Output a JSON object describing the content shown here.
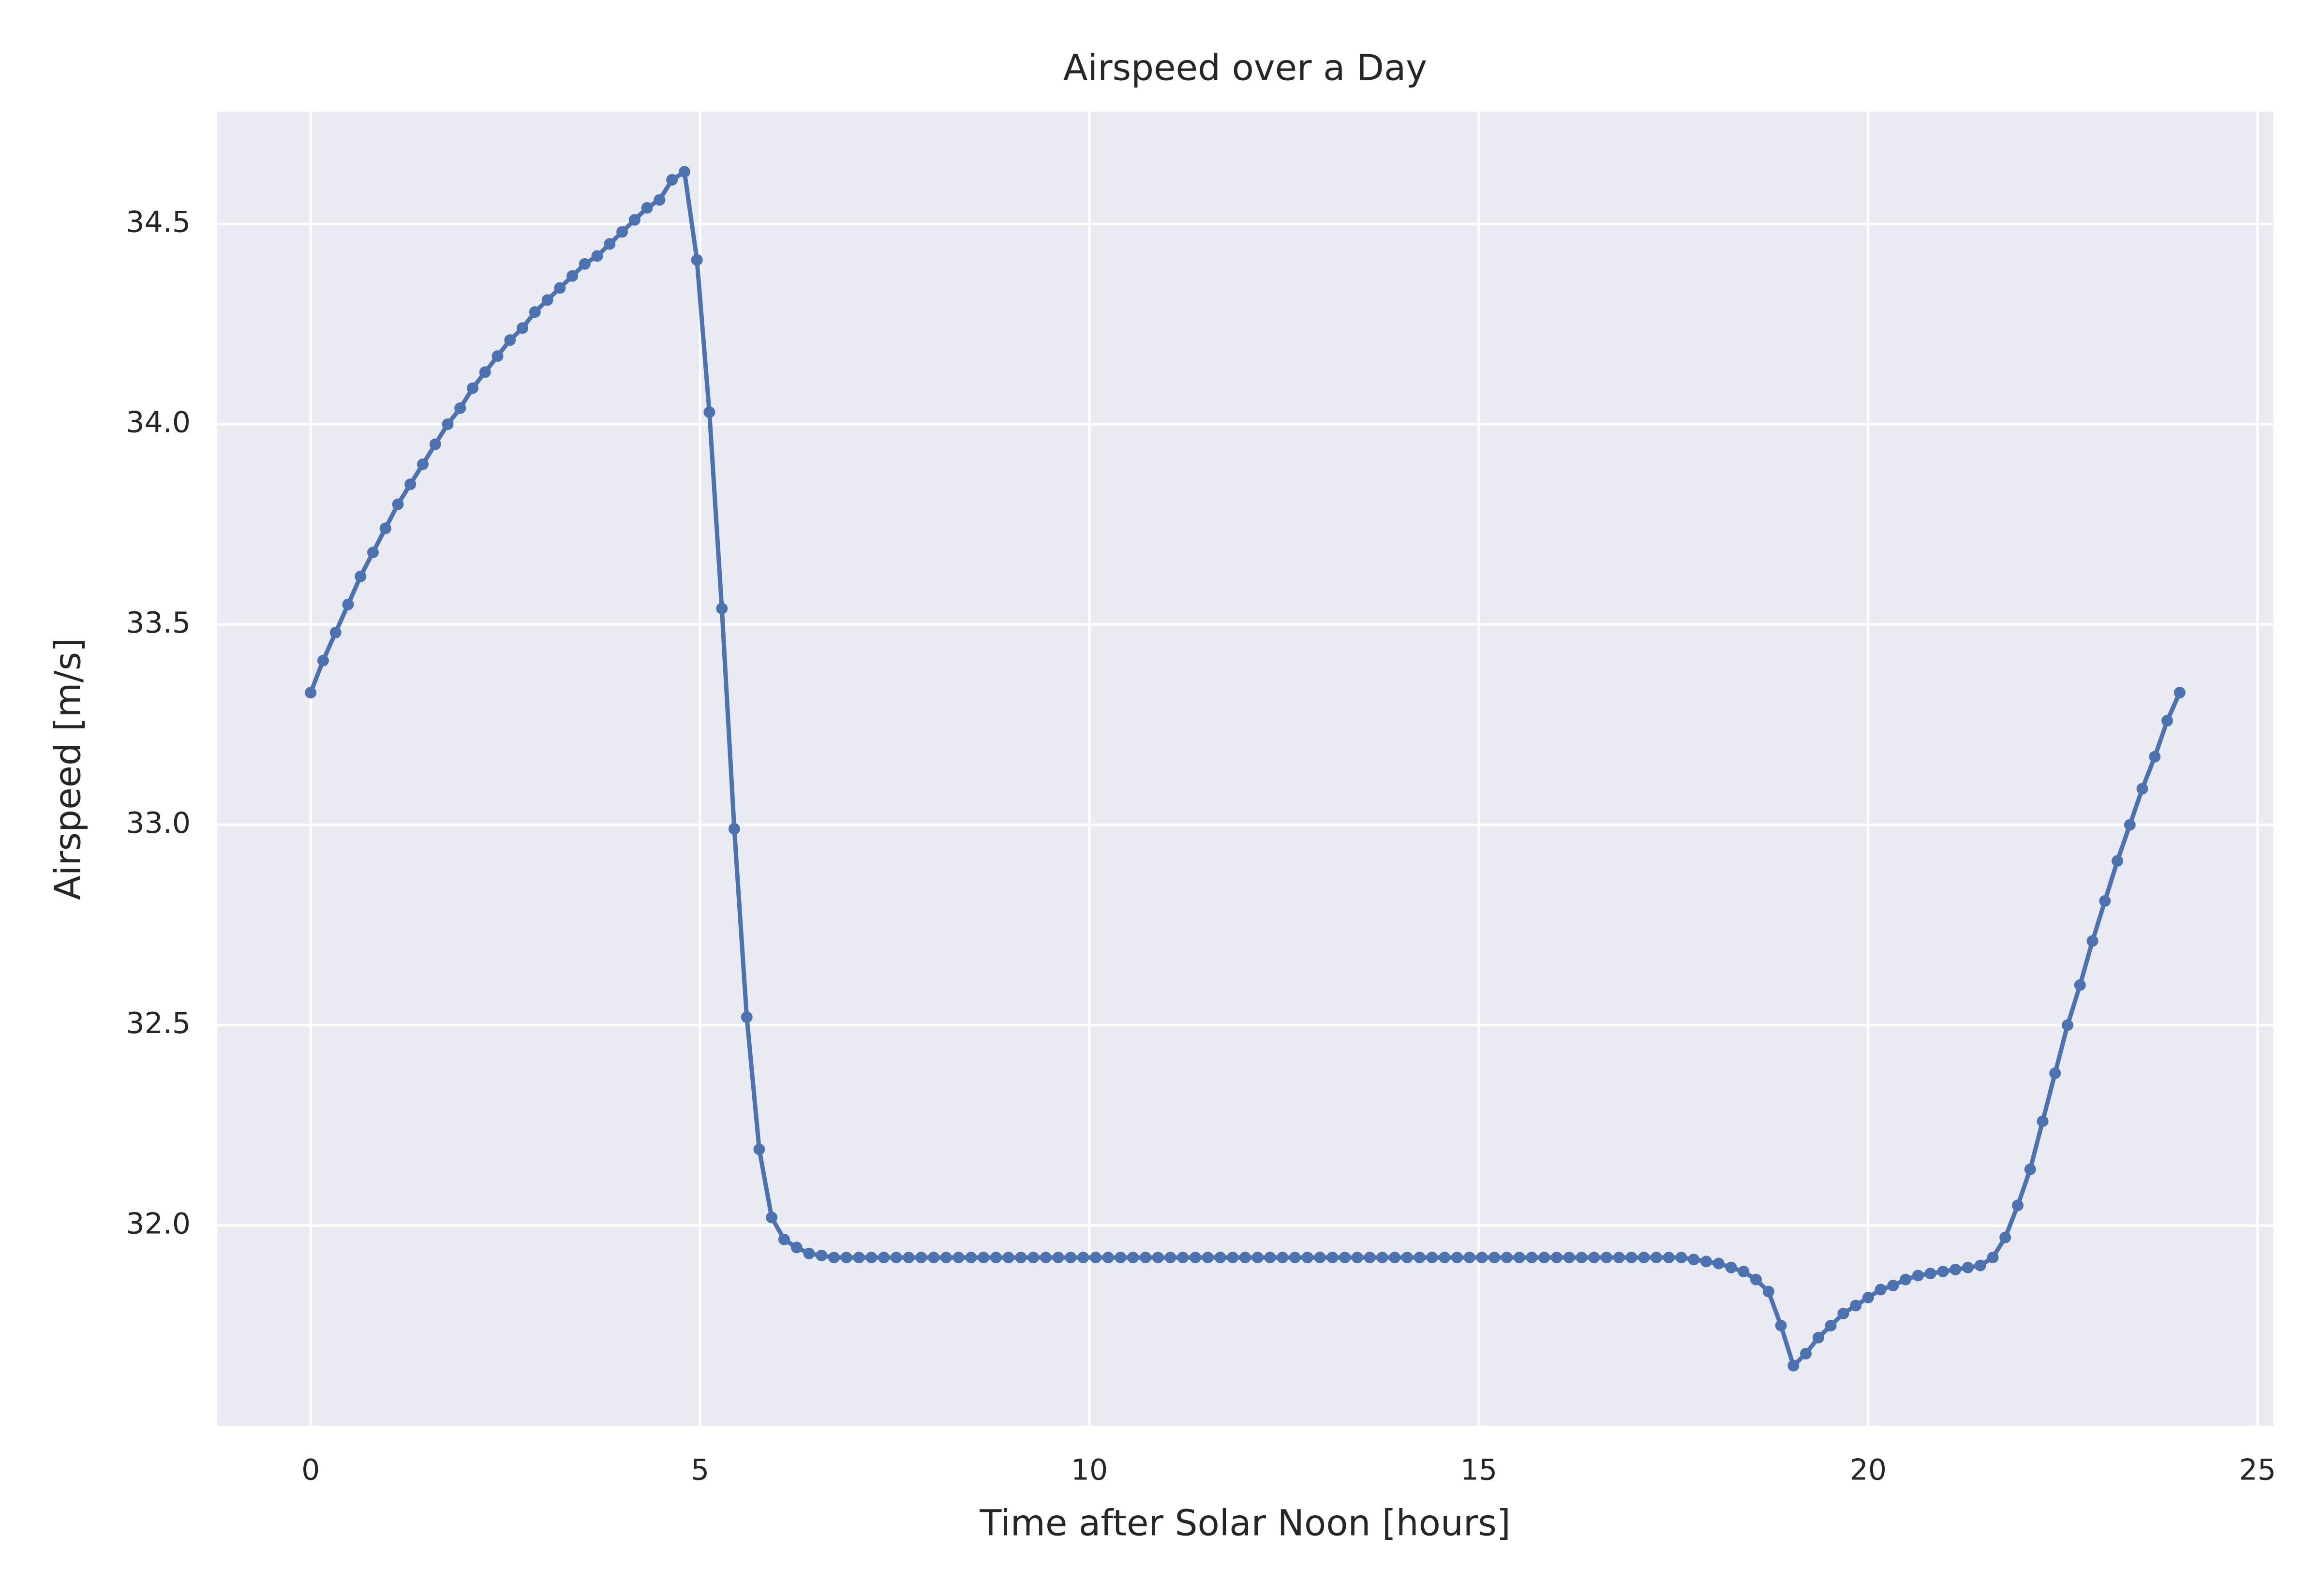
{
  "chart_data": {
    "type": "line",
    "title": "Airspeed over a Day",
    "x_label": "Time after Solar Noon [hours]",
    "y_label": "Airspeed [m/s]",
    "x": [
      0,
      0.16,
      0.32,
      0.48,
      0.64,
      0.8,
      0.96,
      1.12,
      1.28,
      1.44,
      1.6,
      1.76,
      1.92,
      2.08,
      2.24,
      2.4,
      2.56,
      2.72,
      2.88,
      3.04,
      3.2,
      3.36,
      3.52,
      3.68,
      3.84,
      4,
      4.16,
      4.32,
      4.48,
      4.64,
      4.8,
      4.96,
      5.12,
      5.28,
      5.44,
      5.6,
      5.76,
      5.92,
      6.08,
      6.24,
      6.4,
      6.56,
      6.72,
      6.88,
      7.04,
      7.2,
      7.36,
      7.52,
      7.68,
      7.84,
      8,
      8.16,
      8.32,
      8.48,
      8.64,
      8.8,
      8.96,
      9.12,
      9.28,
      9.44,
      9.6,
      9.76,
      9.92,
      10.08,
      10.24,
      10.4,
      10.56,
      10.72,
      10.88,
      11.04,
      11.2,
      11.36,
      11.52,
      11.68,
      11.84,
      12,
      12.16,
      12.32,
      12.48,
      12.64,
      12.8,
      12.96,
      13.12,
      13.28,
      13.44,
      13.6,
      13.76,
      13.92,
      14.08,
      14.24,
      14.4,
      14.56,
      14.72,
      14.88,
      15.04,
      15.2,
      15.36,
      15.52,
      15.68,
      15.84,
      16,
      16.16,
      16.32,
      16.48,
      16.64,
      16.8,
      16.96,
      17.12,
      17.28,
      17.44,
      17.6,
      17.76,
      17.92,
      18.08,
      18.24,
      18.4,
      18.56,
      18.72,
      18.88,
      19.04,
      19.2,
      19.36,
      19.52,
      19.68,
      19.84,
      20,
      20.16,
      20.32,
      20.48,
      20.64,
      20.8,
      20.96,
      21.12,
      21.28,
      21.44,
      21.6,
      21.76,
      21.92,
      22.08,
      22.24,
      22.4,
      22.56,
      22.72,
      22.88,
      23.04,
      23.2,
      23.36,
      23.52,
      23.68,
      23.84,
      24
    ],
    "values": [
      33.33,
      33.41,
      33.48,
      33.55,
      33.62,
      33.68,
      33.74,
      33.8,
      33.85,
      33.9,
      33.95,
      34,
      34.04,
      34.09,
      34.13,
      34.17,
      34.21,
      34.24,
      34.28,
      34.31,
      34.34,
      34.37,
      34.4,
      34.42,
      34.45,
      34.48,
      34.51,
      34.54,
      34.56,
      34.61,
      34.63,
      34.41,
      34.03,
      33.54,
      32.99,
      32.52,
      32.19,
      32.02,
      31.965,
      31.945,
      31.93,
      31.925,
      31.92,
      31.92,
      31.92,
      31.92,
      31.92,
      31.92,
      31.92,
      31.92,
      31.92,
      31.92,
      31.92,
      31.92,
      31.92,
      31.92,
      31.92,
      31.92,
      31.92,
      31.92,
      31.92,
      31.92,
      31.92,
      31.92,
      31.92,
      31.92,
      31.92,
      31.92,
      31.92,
      31.92,
      31.92,
      31.92,
      31.92,
      31.92,
      31.92,
      31.92,
      31.92,
      31.92,
      31.92,
      31.92,
      31.92,
      31.92,
      31.92,
      31.92,
      31.92,
      31.92,
      31.92,
      31.92,
      31.92,
      31.92,
      31.92,
      31.92,
      31.92,
      31.92,
      31.92,
      31.92,
      31.92,
      31.92,
      31.92,
      31.92,
      31.92,
      31.92,
      31.92,
      31.92,
      31.92,
      31.92,
      31.92,
      31.92,
      31.92,
      31.92,
      31.92,
      31.915,
      31.91,
      31.905,
      31.895,
      31.885,
      31.865,
      31.835,
      31.75,
      31.65,
      31.68,
      31.72,
      31.75,
      31.78,
      31.8,
      31.82,
      31.84,
      31.85,
      31.865,
      31.875,
      31.88,
      31.885,
      31.89,
      31.895,
      31.9,
      31.92,
      31.97,
      32.05,
      32.14,
      32.26,
      32.38,
      32.5,
      32.6,
      32.71,
      32.81,
      32.91,
      33,
      33.09,
      33.17,
      33.26,
      33.33
    ],
    "color": "#4c72b0",
    "xlim": [
      -1.2,
      25.2
    ],
    "ylim": [
      31.5,
      34.78
    ],
    "xticks": [
      0,
      5,
      10,
      15,
      20,
      25
    ],
    "yticks": [
      {
        "value": 32,
        "label": "32.0"
      },
      32.5,
      {
        "value": 33,
        "label": "33.0"
      },
      33.5,
      {
        "value": 34,
        "label": "34.0"
      },
      34.5
    ],
    "grid": true
  }
}
